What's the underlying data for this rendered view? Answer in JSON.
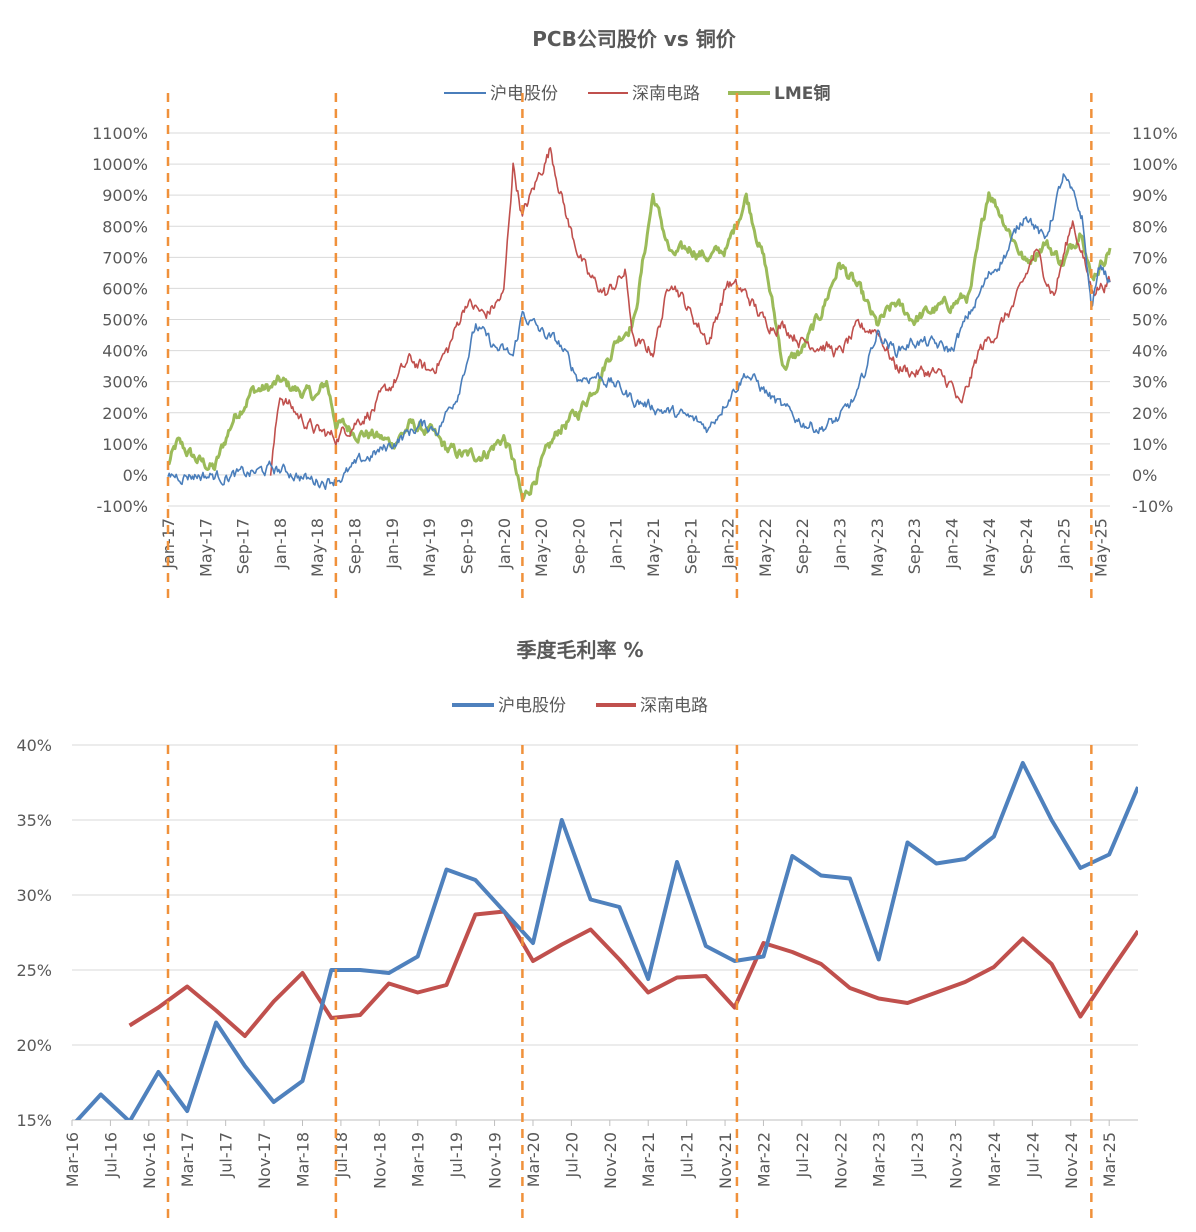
{
  "chart_data": [
    {
      "type": "line",
      "title": "PCB公司股价 vs 铜价",
      "legend_position": "top-center",
      "grid": true,
      "x_ticks": [
        "Jan-17",
        "May-17",
        "Sep-17",
        "Jan-18",
        "May-18",
        "Sep-18",
        "Jan-19",
        "May-19",
        "Sep-19",
        "Jan-20",
        "May-20",
        "Sep-20",
        "Jan-21",
        "May-21",
        "Sep-21",
        "Jan-22",
        "May-22",
        "Sep-22",
        "Jan-23",
        "May-23",
        "Sep-23",
        "Jan-24",
        "May-24",
        "Sep-24",
        "Jan-25",
        "May-25"
      ],
      "y_left": {
        "min": -100,
        "max": 1100,
        "step": 100,
        "ticks": [
          "-100%",
          "0%",
          "100%",
          "200%",
          "300%",
          "400%",
          "500%",
          "600%",
          "700%",
          "800%",
          "900%",
          "1000%",
          "1100%"
        ]
      },
      "y_right": {
        "min": -10,
        "max": 110,
        "step": 10,
        "ticks": [
          "-10%",
          "0%",
          "10%",
          "20%",
          "30%",
          "40%",
          "50%",
          "60%",
          "70%",
          "80%",
          "90%",
          "100%",
          "110%"
        ]
      },
      "vertical_markers": [
        "2017-01",
        "2018-07",
        "2020-03",
        "2022-02",
        "2025-04"
      ],
      "series": [
        {
          "name": "沪电股份",
          "axis": "left",
          "color": "#4a7ebb",
          "points": [
            [
              "2017-01",
              0
            ],
            [
              "2017-04",
              0
            ],
            [
              "2017-07",
              -5
            ],
            [
              "2017-10",
              5
            ],
            [
              "2017-12",
              20
            ],
            [
              "2018-02",
              10
            ],
            [
              "2018-04",
              -15
            ],
            [
              "2018-06",
              -20
            ],
            [
              "2018-08",
              0
            ],
            [
              "2018-10",
              50
            ],
            [
              "2018-12",
              80
            ],
            [
              "2019-02",
              120
            ],
            [
              "2019-04",
              160
            ],
            [
              "2019-06",
              150
            ],
            [
              "2019-08",
              260
            ],
            [
              "2019-10",
              480
            ],
            [
              "2019-12",
              410
            ],
            [
              "2020-02",
              380
            ],
            [
              "2020-03",
              520
            ],
            [
              "2020-05",
              460
            ],
            [
              "2020-07",
              420
            ],
            [
              "2020-09",
              310
            ],
            [
              "2020-11",
              320
            ],
            [
              "2021-01",
              290
            ],
            [
              "2021-03",
              240
            ],
            [
              "2021-05",
              220
            ],
            [
              "2021-07",
              200
            ],
            [
              "2021-09",
              180
            ],
            [
              "2021-11",
              150
            ],
            [
              "2022-01",
              250
            ],
            [
              "2022-03",
              330
            ],
            [
              "2022-05",
              270
            ],
            [
              "2022-07",
              210
            ],
            [
              "2022-09",
              170
            ],
            [
              "2022-11",
              150
            ],
            [
              "2023-01",
              180
            ],
            [
              "2023-03",
              260
            ],
            [
              "2023-05",
              460
            ],
            [
              "2023-07",
              400
            ],
            [
              "2023-09",
              430
            ],
            [
              "2023-11",
              420
            ],
            [
              "2024-01",
              400
            ],
            [
              "2024-03",
              520
            ],
            [
              "2024-05",
              640
            ],
            [
              "2024-07",
              720
            ],
            [
              "2024-09",
              850
            ],
            [
              "2024-11",
              750
            ],
            [
              "2025-01",
              960
            ],
            [
              "2025-03",
              830
            ],
            [
              "2025-04",
              540
            ],
            [
              "2025-05",
              680
            ],
            [
              "2025-06",
              620
            ]
          ]
        },
        {
          "name": "深南电路",
          "axis": "left",
          "color": "#c0504d",
          "points": [
            [
              "2017-12",
              0
            ],
            [
              "2018-01",
              260
            ],
            [
              "2018-03",
              190
            ],
            [
              "2018-05",
              140
            ],
            [
              "2018-07",
              120
            ],
            [
              "2018-09",
              170
            ],
            [
              "2018-11",
              210
            ],
            [
              "2019-01",
              290
            ],
            [
              "2019-03",
              370
            ],
            [
              "2019-05",
              330
            ],
            [
              "2019-07",
              400
            ],
            [
              "2019-09",
              560
            ],
            [
              "2019-11",
              510
            ],
            [
              "2020-01",
              580
            ],
            [
              "2020-02",
              1000
            ],
            [
              "2020-03",
              830
            ],
            [
              "2020-05",
              980
            ],
            [
              "2020-06",
              1050
            ],
            [
              "2020-08",
              800
            ],
            [
              "2020-10",
              640
            ],
            [
              "2020-12",
              580
            ],
            [
              "2021-02",
              650
            ],
            [
              "2021-03",
              420
            ],
            [
              "2021-05",
              400
            ],
            [
              "2021-07",
              640
            ],
            [
              "2021-09",
              520
            ],
            [
              "2021-11",
              430
            ],
            [
              "2022-01",
              620
            ],
            [
              "2022-03",
              580
            ],
            [
              "2022-05",
              490
            ],
            [
              "2022-07",
              480
            ],
            [
              "2022-09",
              430
            ],
            [
              "2022-11",
              420
            ],
            [
              "2023-01",
              390
            ],
            [
              "2023-03",
              470
            ],
            [
              "2023-05",
              470
            ],
            [
              "2023-07",
              350
            ],
            [
              "2023-09",
              330
            ],
            [
              "2023-11",
              330
            ],
            [
              "2024-01",
              290
            ],
            [
              "2024-02",
              210
            ],
            [
              "2024-04",
              400
            ],
            [
              "2024-06",
              470
            ],
            [
              "2024-08",
              560
            ],
            [
              "2024-10",
              720
            ],
            [
              "2024-12",
              580
            ],
            [
              "2025-02",
              820
            ],
            [
              "2025-04",
              600
            ],
            [
              "2025-06",
              620
            ]
          ]
        },
        {
          "name": "LME铜",
          "axis": "right",
          "color": "#9bbb59",
          "points": [
            [
              "2017-01",
              3
            ],
            [
              "2017-02",
              10
            ],
            [
              "2017-04",
              5
            ],
            [
              "2017-06",
              2
            ],
            [
              "2017-08",
              18
            ],
            [
              "2017-10",
              27
            ],
            [
              "2017-12",
              28
            ],
            [
              "2018-01",
              30
            ],
            [
              "2018-03",
              27
            ],
            [
              "2018-05",
              25
            ],
            [
              "2018-06",
              30
            ],
            [
              "2018-07",
              17
            ],
            [
              "2018-09",
              14
            ],
            [
              "2018-11",
              13
            ],
            [
              "2019-01",
              10
            ],
            [
              "2019-03",
              16
            ],
            [
              "2019-05",
              14
            ],
            [
              "2019-07",
              8
            ],
            [
              "2019-09",
              6
            ],
            [
              "2019-11",
              7
            ],
            [
              "2020-01",
              12
            ],
            [
              "2020-02",
              5
            ],
            [
              "2020-03",
              -9
            ],
            [
              "2020-05",
              3
            ],
            [
              "2020-07",
              15
            ],
            [
              "2020-09",
              20
            ],
            [
              "2020-11",
              30
            ],
            [
              "2021-01",
              43
            ],
            [
              "2021-03",
              50
            ],
            [
              "2021-05",
              90
            ],
            [
              "2021-07",
              70
            ],
            [
              "2021-09",
              73
            ],
            [
              "2021-11",
              70
            ],
            [
              "2022-01",
              73
            ],
            [
              "2022-03",
              90
            ],
            [
              "2022-05",
              68
            ],
            [
              "2022-07",
              35
            ],
            [
              "2022-09",
              40
            ],
            [
              "2022-11",
              52
            ],
            [
              "2023-01",
              68
            ],
            [
              "2023-03",
              60
            ],
            [
              "2023-05",
              48
            ],
            [
              "2023-07",
              55
            ],
            [
              "2023-09",
              50
            ],
            [
              "2023-11",
              53
            ],
            [
              "2024-01",
              55
            ],
            [
              "2024-03",
              58
            ],
            [
              "2024-05",
              92
            ],
            [
              "2024-07",
              80
            ],
            [
              "2024-09",
              68
            ],
            [
              "2024-11",
              75
            ],
            [
              "2025-01",
              68
            ],
            [
              "2025-03",
              80
            ],
            [
              "2025-04",
              63
            ],
            [
              "2025-06",
              73
            ]
          ]
        }
      ]
    },
    {
      "type": "line",
      "title": "季度毛利率 %",
      "legend_position": "top-center",
      "grid": true,
      "x_ticks": [
        "Mar-16",
        "Jul-16",
        "Nov-16",
        "Mar-17",
        "Jul-17",
        "Nov-17",
        "Mar-18",
        "Jul-18",
        "Nov-18",
        "Mar-19",
        "Jul-19",
        "Nov-19",
        "Mar-20",
        "Jul-20",
        "Nov-20",
        "Mar-21",
        "Jul-21",
        "Nov-21",
        "Mar-22",
        "Jul-22",
        "Nov-22",
        "Mar-23",
        "Jul-23",
        "Nov-23",
        "Mar-24",
        "Jul-24",
        "Nov-24",
        "Mar-25"
      ],
      "y": {
        "min": 15,
        "max": 40,
        "ticks": [
          "15%",
          "20%",
          "25%",
          "30%",
          "35%",
          "40%"
        ]
      },
      "vertical_markers": [
        "2017-01",
        "2018-07",
        "2020-03",
        "2022-02",
        "2025-04"
      ],
      "series": [
        {
          "name": "沪电股份",
          "color": "#4f81bd",
          "points": [
            [
              "2016-03",
              14.6
            ],
            [
              "2016-06",
              16.7
            ],
            [
              "2016-09",
              14.9
            ],
            [
              "2016-12",
              18.2
            ],
            [
              "2017-03",
              15.6
            ],
            [
              "2017-06",
              21.5
            ],
            [
              "2017-09",
              18.6
            ],
            [
              "2017-12",
              16.2
            ],
            [
              "2018-03",
              17.6
            ],
            [
              "2018-06",
              25.0
            ],
            [
              "2018-09",
              25.0
            ],
            [
              "2018-12",
              24.8
            ],
            [
              "2019-03",
              25.9
            ],
            [
              "2019-06",
              31.7
            ],
            [
              "2019-09",
              31.0
            ],
            [
              "2019-12",
              28.9
            ],
            [
              "2020-03",
              26.8
            ],
            [
              "2020-06",
              35.0
            ],
            [
              "2020-09",
              29.7
            ],
            [
              "2020-12",
              29.2
            ],
            [
              "2021-03",
              24.4
            ],
            [
              "2021-06",
              32.2
            ],
            [
              "2021-09",
              26.6
            ],
            [
              "2021-12",
              25.6
            ],
            [
              "2022-03",
              25.9
            ],
            [
              "2022-06",
              32.6
            ],
            [
              "2022-09",
              31.3
            ],
            [
              "2022-12",
              31.1
            ],
            [
              "2023-03",
              25.7
            ],
            [
              "2023-06",
              33.5
            ],
            [
              "2023-09",
              32.1
            ],
            [
              "2023-12",
              32.4
            ],
            [
              "2024-03",
              33.9
            ],
            [
              "2024-06",
              38.8
            ],
            [
              "2024-09",
              35.0
            ],
            [
              "2024-12",
              31.8
            ],
            [
              "2025-03",
              32.7
            ],
            [
              "2025-06",
              37.2
            ]
          ]
        },
        {
          "name": "深南电路",
          "color": "#c0504d",
          "points": [
            [
              "2016-09",
              21.3
            ],
            [
              "2016-12",
              22.5
            ],
            [
              "2017-03",
              23.9
            ],
            [
              "2017-06",
              22.3
            ],
            [
              "2017-09",
              20.6
            ],
            [
              "2017-12",
              22.9
            ],
            [
              "2018-03",
              24.8
            ],
            [
              "2018-06",
              21.8
            ],
            [
              "2018-09",
              22.0
            ],
            [
              "2018-12",
              24.1
            ],
            [
              "2019-03",
              23.5
            ],
            [
              "2019-06",
              24.0
            ],
            [
              "2019-09",
              28.7
            ],
            [
              "2019-12",
              28.9
            ],
            [
              "2020-03",
              25.6
            ],
            [
              "2020-06",
              26.7
            ],
            [
              "2020-09",
              27.7
            ],
            [
              "2020-12",
              25.7
            ],
            [
              "2021-03",
              23.5
            ],
            [
              "2021-06",
              24.5
            ],
            [
              "2021-09",
              24.6
            ],
            [
              "2021-12",
              22.5
            ],
            [
              "2022-03",
              26.8
            ],
            [
              "2022-06",
              26.2
            ],
            [
              "2022-09",
              25.4
            ],
            [
              "2022-12",
              23.8
            ],
            [
              "2023-03",
              23.1
            ],
            [
              "2023-06",
              22.8
            ],
            [
              "2023-09",
              23.5
            ],
            [
              "2023-12",
              24.2
            ],
            [
              "2024-03",
              25.2
            ],
            [
              "2024-06",
              27.1
            ],
            [
              "2024-09",
              25.4
            ],
            [
              "2024-12",
              21.9
            ],
            [
              "2025-03",
              24.8
            ],
            [
              "2025-06",
              27.6
            ]
          ]
        }
      ]
    }
  ]
}
